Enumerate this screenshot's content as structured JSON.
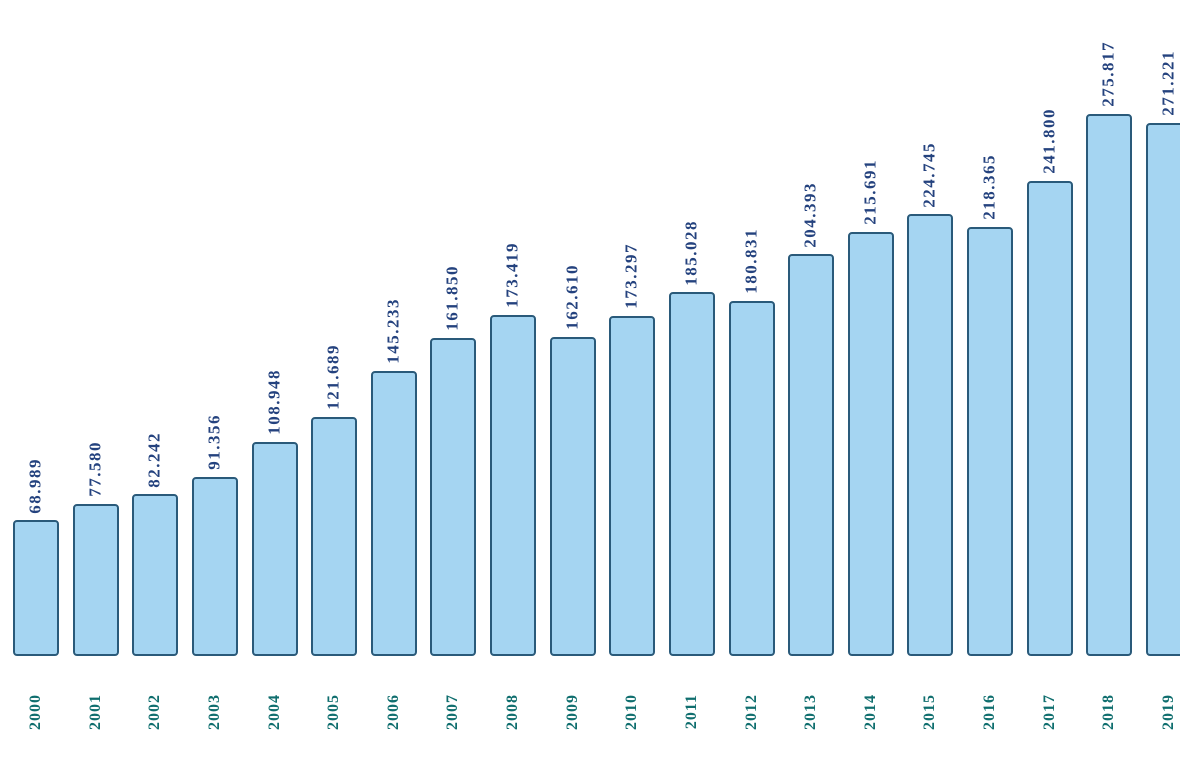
{
  "chart_data": {
    "type": "bar",
    "title": "",
    "xlabel": "",
    "ylabel": "",
    "categories": [
      "2000",
      "2001",
      "2002",
      "2003",
      "2004",
      "2005",
      "2006",
      "2007",
      "2008",
      "2009",
      "2010",
      "2011",
      "2012",
      "2013",
      "2014",
      "2015",
      "2016",
      "2017",
      "2018",
      "2019"
    ],
    "values": [
      68989,
      77580,
      82242,
      91356,
      108948,
      121689,
      145233,
      161850,
      173419,
      162610,
      173297,
      185028,
      180831,
      204393,
      215691,
      224745,
      218365,
      241800,
      275817,
      271221
    ],
    "value_labels": [
      "68.989",
      "77.580",
      "82.242",
      "91.356",
      "108.948",
      "121.689",
      "145.233",
      "161.850",
      "173.419",
      "162.610",
      "173.297",
      "185.028",
      "180.831",
      "204.393",
      "215.691",
      "224.745",
      "218.365",
      "241.800",
      "275.817",
      "271.221"
    ],
    "ylim": [
      0,
      285000
    ],
    "grid": false,
    "legend": null,
    "value_label_rotation_deg": 90,
    "category_label_rotation_deg": 90,
    "colors": {
      "background": "#ffffff",
      "bar_fill": "#a5d5f2",
      "bar_border": "#2a5a7a",
      "value_label": "#24427e",
      "category_label": "#0f6e6e"
    }
  }
}
